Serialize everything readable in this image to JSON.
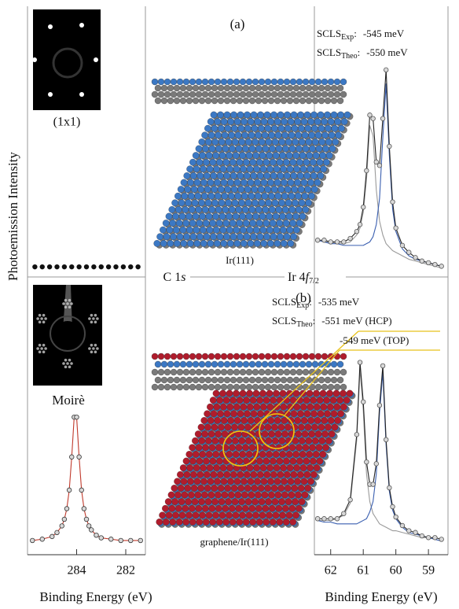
{
  "labels": {
    "y_axis": "Photoemission Intensity",
    "leed_a": "(1x1)",
    "leed_b": "Moirè",
    "panel_a": "(a)",
    "panel_b": "(b)",
    "substrate_a": "Ir(111)",
    "substrate_b": "graphene/Ir(111)",
    "c1s": {
      "text": "C 1",
      "italic": "s"
    },
    "ir4f": {
      "text": "Ir 4",
      "italic": "f",
      "sub": "7/2"
    },
    "scls_a": [
      {
        "text": "SCLS",
        "sub": "Exp",
        "rest": ":",
        "value": "-545 meV"
      },
      {
        "text": "SCLS",
        "sub": "Theo",
        "rest": ":",
        "value": "-550 meV"
      }
    ],
    "scls_b": [
      {
        "text": "SCLS",
        "sub": "Exp",
        "rest": ":",
        "value": "-535 meV"
      },
      {
        "text": "SCLS",
        "sub": "Theo",
        "rest": ":",
        "value": "-551 meV (HCP)"
      },
      {
        "value": "-549 meV  (TOP)"
      }
    ]
  },
  "chart_data": [
    {
      "type": "line",
      "xlim": [
        62.5,
        58.4
      ],
      "ylim": [
        0,
        1.2
      ],
      "x": [
        62.4,
        62.2,
        62.0,
        61.8,
        61.6,
        61.4,
        61.2,
        61.1,
        61.0,
        60.9,
        60.8,
        60.7,
        60.6,
        60.5,
        60.4,
        60.3,
        60.2,
        60.1,
        60.0,
        59.8,
        59.6,
        59.4,
        59.2,
        59.0,
        58.8,
        58.6
      ],
      "series": [
        {
          "color": "#9a9a9a",
          "style": "line",
          "values": [
            0.18,
            0.17,
            0.17,
            0.16,
            0.16,
            0.17,
            0.21,
            0.25,
            0.34,
            0.53,
            0.84,
            0.78,
            0.47,
            0.29,
            0.21,
            0.16,
            0.14,
            0.12,
            0.11,
            0.09,
            0.07,
            0.06,
            0.05,
            0.04,
            0.03,
            0.02
          ]
        },
        {
          "color": "#3a5fb0",
          "style": "line",
          "values": [
            0.18,
            0.17,
            0.16,
            0.16,
            0.15,
            0.15,
            0.15,
            0.15,
            0.15,
            0.16,
            0.17,
            0.2,
            0.27,
            0.42,
            0.77,
            1.08,
            0.67,
            0.36,
            0.23,
            0.13,
            0.09,
            0.07,
            0.06,
            0.05,
            0.04,
            0.03
          ]
        },
        {
          "color": "#222222",
          "style": "line",
          "values": [
            0.18,
            0.18,
            0.17,
            0.17,
            0.17,
            0.19,
            0.23,
            0.27,
            0.37,
            0.58,
            0.9,
            0.88,
            0.63,
            0.61,
            0.88,
            1.16,
            0.72,
            0.4,
            0.25,
            0.15,
            0.11,
            0.08,
            0.06,
            0.05,
            0.04,
            0.03
          ]
        },
        {
          "color": "#555555",
          "style": "markers",
          "values": [
            0.18,
            0.18,
            0.17,
            0.17,
            0.17,
            0.19,
            0.23,
            0.27,
            0.37,
            0.58,
            0.9,
            0.88,
            0.63,
            0.61,
            0.88,
            1.16,
            0.72,
            0.4,
            0.25,
            0.15,
            0.11,
            0.08,
            0.06,
            0.05,
            0.04,
            0.03
          ]
        }
      ]
    },
    {
      "type": "line",
      "xlim": [
        62.5,
        58.4
      ],
      "ylim": [
        0,
        1.2
      ],
      "xticks": [
        62,
        61,
        60,
        59
      ],
      "xlabel": "Binding Energy (eV)",
      "x": [
        62.4,
        62.2,
        62.0,
        61.8,
        61.6,
        61.4,
        61.2,
        61.1,
        61.0,
        60.9,
        60.8,
        60.7,
        60.6,
        60.5,
        60.4,
        60.3,
        60.2,
        60.1,
        60.0,
        59.8,
        59.6,
        59.4,
        59.2,
        59.0,
        58.8,
        58.6
      ],
      "series": [
        {
          "color": "#9a9a9a",
          "style": "line",
          "values": [
            0.14,
            0.14,
            0.14,
            0.15,
            0.17,
            0.24,
            0.61,
            1.02,
            0.78,
            0.41,
            0.25,
            0.18,
            0.15,
            0.12,
            0.11,
            0.1,
            0.09,
            0.08,
            0.08,
            0.07,
            0.06,
            0.05,
            0.04,
            0.04,
            0.03,
            0.02
          ]
        },
        {
          "color": "#3a5fb0",
          "style": "line",
          "values": [
            0.14,
            0.13,
            0.13,
            0.12,
            0.12,
            0.12,
            0.12,
            0.13,
            0.14,
            0.15,
            0.19,
            0.25,
            0.41,
            0.77,
            1.0,
            0.58,
            0.31,
            0.2,
            0.15,
            0.1,
            0.07,
            0.06,
            0.05,
            0.04,
            0.03,
            0.02
          ]
        },
        {
          "color": "#222222",
          "style": "line",
          "values": [
            0.15,
            0.15,
            0.15,
            0.15,
            0.18,
            0.26,
            0.64,
            1.06,
            0.83,
            0.48,
            0.35,
            0.35,
            0.47,
            0.81,
            1.04,
            0.61,
            0.33,
            0.22,
            0.16,
            0.11,
            0.08,
            0.07,
            0.05,
            0.04,
            0.04,
            0.03
          ]
        },
        {
          "color": "#555555",
          "style": "markers",
          "values": [
            0.15,
            0.15,
            0.15,
            0.15,
            0.18,
            0.26,
            0.64,
            1.06,
            0.83,
            0.48,
            0.35,
            0.35,
            0.47,
            0.81,
            1.04,
            0.61,
            0.33,
            0.22,
            0.16,
            0.11,
            0.08,
            0.07,
            0.05,
            0.04,
            0.04,
            0.03
          ]
        }
      ]
    },
    {
      "type": "line",
      "xlim": [
        286,
        281.2
      ],
      "ylim": [
        0,
        1
      ],
      "x": [
        285.7,
        285.4,
        285.1,
        284.8,
        284.5,
        284.2,
        283.9,
        283.6,
        283.3,
        283.0,
        282.7,
        282.4,
        282.1,
        281.8,
        281.5
      ],
      "series": [
        {
          "color": "#111111",
          "style": "markers",
          "values": [
            0.02,
            0.02,
            0.02,
            0.02,
            0.02,
            0.02,
            0.02,
            0.02,
            0.02,
            0.02,
            0.02,
            0.02,
            0.02,
            0.02,
            0.02
          ]
        }
      ]
    },
    {
      "type": "line",
      "xlim": [
        286,
        281.2
      ],
      "ylim": [
        0,
        1.05
      ],
      "xticks": [
        284,
        282
      ],
      "xlabel": "Binding Energy (eV)",
      "x": [
        285.8,
        285.4,
        285.0,
        284.8,
        284.6,
        284.5,
        284.4,
        284.3,
        284.2,
        284.1,
        284.0,
        283.9,
        283.8,
        283.7,
        283.6,
        283.5,
        283.4,
        283.2,
        283.0,
        282.6,
        282.2,
        281.8,
        281.4
      ],
      "series": [
        {
          "color": "#c0392b",
          "style": "line",
          "values": [
            0.03,
            0.04,
            0.06,
            0.09,
            0.14,
            0.19,
            0.27,
            0.41,
            0.66,
            0.96,
            0.96,
            0.66,
            0.41,
            0.27,
            0.19,
            0.14,
            0.11,
            0.07,
            0.05,
            0.04,
            0.03,
            0.03,
            0.03
          ]
        },
        {
          "color": "#333333",
          "style": "markers",
          "values": [
            0.03,
            0.04,
            0.06,
            0.09,
            0.14,
            0.19,
            0.27,
            0.41,
            0.66,
            0.96,
            0.96,
            0.66,
            0.41,
            0.27,
            0.19,
            0.14,
            0.11,
            0.07,
            0.05,
            0.04,
            0.03,
            0.03,
            0.03
          ]
        }
      ]
    }
  ]
}
